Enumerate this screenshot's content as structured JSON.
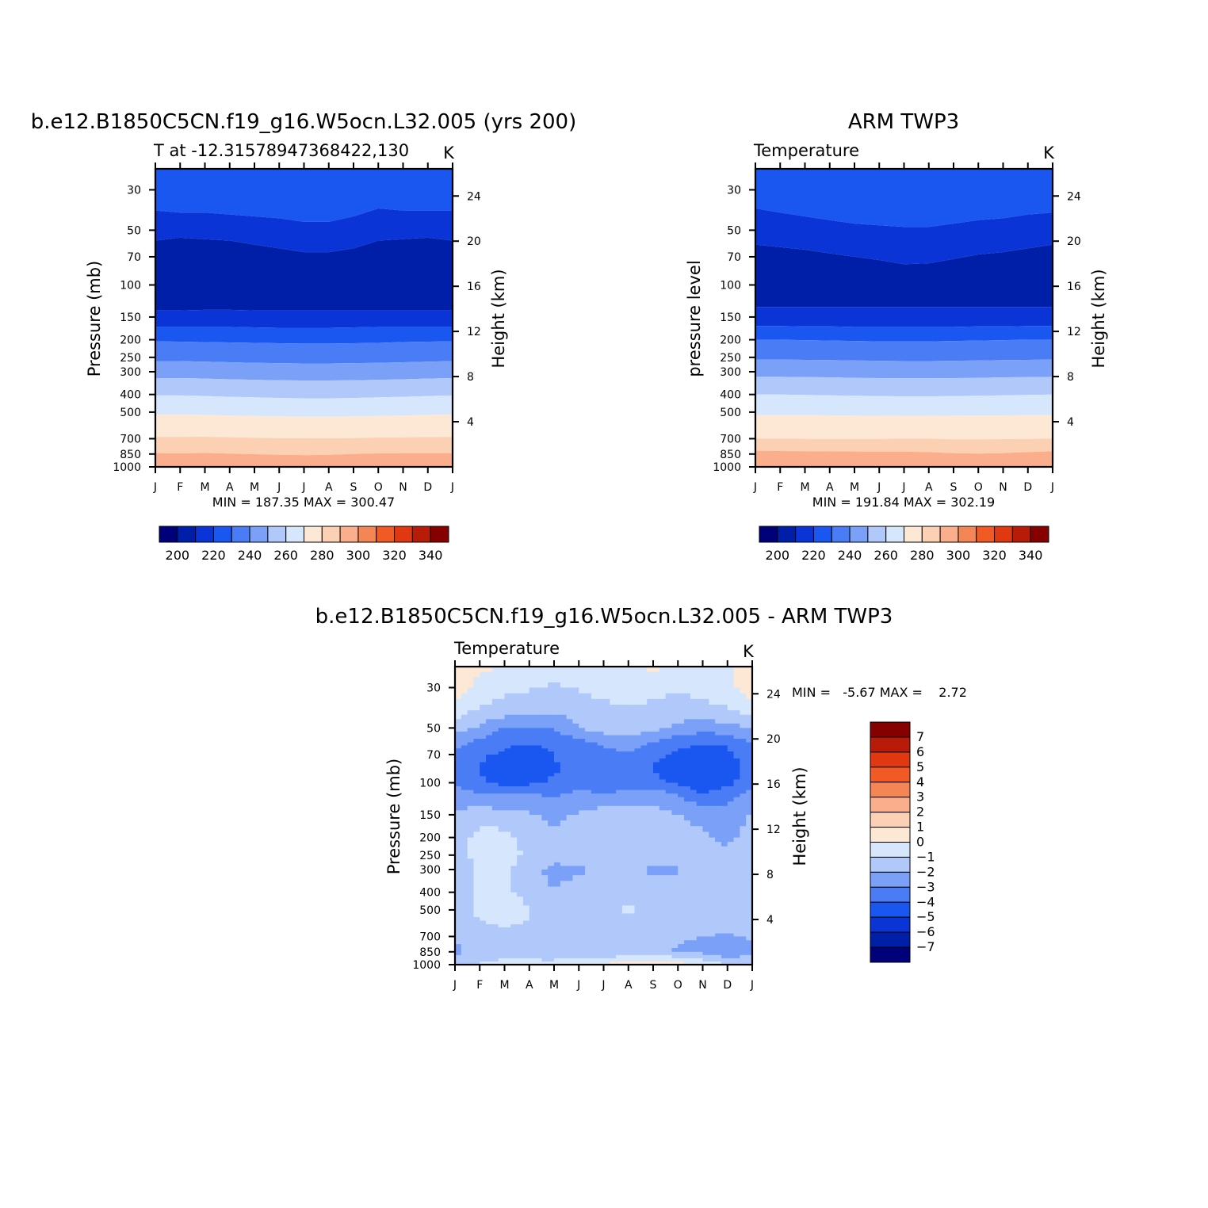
{
  "figure": {
    "panels": [
      {
        "id": "model",
        "title": "b.e12.B1850C5CN.f19_g16.W5ocn.L32.005 (yrs 200)",
        "subtitle_left": "T at -12.31578947368422,130",
        "subtitle_right": "K",
        "ylabel_left": "Pressure (mb)",
        "ylabel_right": "Height (km)",
        "minmax": "MIN = 187.35 MAX = 300.47"
      },
      {
        "id": "obs",
        "title": "ARM TWP3",
        "subtitle_left": "Temperature",
        "subtitle_right": "K",
        "ylabel_left": "pressure level",
        "ylabel_right": "Height (km)",
        "minmax": "MIN = 191.84 MAX = 302.19"
      },
      {
        "id": "diff",
        "title": "b.e12.B1850C5CN.f19_g16.W5ocn.L32.005 - ARM TWP3",
        "subtitle_left": "Temperature",
        "subtitle_right": "K",
        "ylabel_left": "Pressure (mb)",
        "ylabel_right": "Height (km)",
        "minmax": "MIN =   -5.67 MAX =    2.72"
      }
    ]
  },
  "chart_data": [
    {
      "type": "heatmap",
      "title": "b.e12.B1850C5CN.f19_g16.W5ocn.L32.005 (yrs 200)",
      "variable": "T at -12.31578947368422,130",
      "units": "K",
      "x_ticks": [
        "J",
        "F",
        "M",
        "A",
        "M",
        "J",
        "J",
        "A",
        "S",
        "O",
        "N",
        "D",
        "J"
      ],
      "y_ticks_pressure": [
        "30",
        "50",
        "70",
        "100",
        "150",
        "200",
        "250",
        "300",
        "400",
        "500",
        "700",
        "850",
        "1000"
      ],
      "y_ticks_height": [
        "24",
        "20",
        "16",
        "12",
        "8",
        "4"
      ],
      "y_pressure_values": [
        30,
        50,
        70,
        100,
        150,
        200,
        250,
        300,
        400,
        500,
        700,
        850,
        1000
      ],
      "y_height_values": [
        24,
        20,
        16,
        12,
        8,
        4
      ],
      "min": 187.35,
      "max": 300.47,
      "colorbar_labels": [
        "200",
        "220",
        "240",
        "260",
        "280",
        "300",
        "320",
        "340"
      ],
      "levels": [
        190,
        200,
        210,
        220,
        230,
        240,
        250,
        260,
        270,
        280,
        290,
        300,
        310,
        320,
        330,
        340,
        350
      ],
      "boundaries_mb": [
        [
          23,
          23,
          23,
          23,
          23,
          23,
          23,
          23,
          23,
          23,
          23,
          23,
          23
        ],
        [
          39,
          40,
          40,
          41,
          42,
          43,
          45,
          45,
          42,
          38,
          39,
          39,
          39
        ],
        [
          57,
          55,
          56,
          57,
          60,
          63,
          66,
          66,
          63,
          57,
          56,
          55,
          57
        ],
        [
          138,
          138,
          137,
          137,
          138,
          138,
          138,
          138,
          138,
          138,
          138,
          138,
          138
        ],
        [
          170,
          170,
          170,
          170,
          171,
          172,
          172,
          172,
          171,
          170,
          170,
          170,
          170
        ],
        [
          204,
          205,
          206,
          207,
          208,
          209,
          210,
          210,
          209,
          208,
          206,
          205,
          204
        ],
        [
          262,
          262,
          264,
          266,
          268,
          269,
          270,
          270,
          269,
          268,
          266,
          264,
          262
        ],
        [
          325,
          325,
          327,
          330,
          332,
          334,
          335,
          335,
          334,
          332,
          330,
          327,
          325
        ],
        [
          405,
          405,
          408,
          412,
          415,
          418,
          420,
          420,
          418,
          415,
          412,
          408,
          405
        ],
        [
          515,
          515,
          518,
          522,
          525,
          528,
          530,
          530,
          528,
          525,
          522,
          518,
          515
        ],
        [
          685,
          685,
          683,
          687,
          692,
          695,
          695,
          696,
          694,
          690,
          688,
          686,
          685
        ],
        [
          840,
          842,
          838,
          845,
          852,
          858,
          862,
          858,
          850,
          843,
          840,
          840,
          840
        ],
        [
          1000,
          1000,
          1000,
          1000,
          1000,
          1000,
          1000,
          1000,
          1000,
          1000,
          1000,
          1000,
          1000
        ]
      ],
      "band_values": [
        "210",
        "200",
        "190",
        "200",
        "210",
        "220",
        "230",
        "240",
        "250",
        "260",
        "270",
        "280",
        "290"
      ]
    },
    {
      "type": "heatmap",
      "title": "ARM TWP3",
      "variable": "Temperature",
      "units": "K",
      "x_ticks": [
        "J",
        "F",
        "M",
        "A",
        "M",
        "J",
        "J",
        "A",
        "S",
        "O",
        "N",
        "D",
        "J"
      ],
      "y_ticks_pressure": [
        "30",
        "50",
        "70",
        "100",
        "150",
        "200",
        "250",
        "300",
        "400",
        "500",
        "700",
        "850",
        "1000"
      ],
      "y_ticks_height": [
        "24",
        "20",
        "16",
        "12",
        "8",
        "4"
      ],
      "y_pressure_values": [
        30,
        50,
        70,
        100,
        150,
        200,
        250,
        300,
        400,
        500,
        700,
        850,
        1000
      ],
      "y_height_values": [
        24,
        20,
        16,
        12,
        8,
        4
      ],
      "min": 191.84,
      "max": 302.19,
      "colorbar_labels": [
        "200",
        "220",
        "240",
        "260",
        "280",
        "300",
        "320",
        "340"
      ],
      "levels": [
        190,
        200,
        210,
        220,
        230,
        240,
        250,
        260,
        270,
        280,
        290,
        300,
        310,
        320,
        330,
        340,
        350
      ],
      "boundaries_mb": [
        [
          23,
          23,
          23,
          23,
          23,
          23,
          23,
          23,
          23,
          23,
          23,
          23,
          23
        ],
        [
          38,
          40,
          42,
          44,
          46,
          47,
          48,
          48,
          46,
          44,
          43,
          41,
          40
        ],
        [
          60,
          62,
          64,
          67,
          70,
          73,
          77,
          76,
          72,
          68,
          66,
          63,
          60
        ],
        [
          132,
          132,
          132,
          132,
          132,
          132,
          132,
          132,
          132,
          132,
          132,
          132,
          132
        ],
        [
          168,
          168,
          169,
          169,
          170,
          170,
          170,
          170,
          170,
          169,
          169,
          168,
          168
        ],
        [
          200,
          200,
          201,
          202,
          203,
          204,
          204,
          204,
          203,
          202,
          201,
          200,
          200
        ],
        [
          257,
          257,
          258,
          259,
          260,
          261,
          262,
          262,
          261,
          260,
          259,
          258,
          257
        ],
        [
          320,
          320,
          321,
          322,
          324,
          325,
          326,
          326,
          325,
          324,
          322,
          321,
          320
        ],
        [
          400,
          400,
          402,
          404,
          406,
          408,
          410,
          410,
          408,
          406,
          404,
          402,
          400
        ],
        [
          520,
          520,
          519,
          521,
          523,
          524,
          525,
          525,
          523,
          522,
          521,
          520,
          520
        ],
        [
          700,
          700,
          701,
          703,
          703,
          702,
          700,
          700,
          705,
          705,
          704,
          702,
          700
        ],
        [
          815,
          818,
          820,
          822,
          823,
          824,
          825,
          830,
          840,
          845,
          840,
          830,
          820
        ],
        [
          1000,
          1000,
          1000,
          1000,
          1000,
          1000,
          1000,
          1000,
          1000,
          1000,
          1000,
          1000,
          1000
        ]
      ],
      "band_values": [
        "210",
        "200",
        "190",
        "200",
        "210",
        "220",
        "230",
        "240",
        "250",
        "260",
        "270",
        "280",
        "290"
      ]
    },
    {
      "type": "heatmap",
      "title": "b.e12.B1850C5CN.f19_g16.W5ocn.L32.005 - ARM TWP3",
      "variable": "Temperature",
      "units": "K",
      "x_ticks": [
        "J",
        "F",
        "M",
        "A",
        "M",
        "J",
        "J",
        "A",
        "S",
        "O",
        "N",
        "D",
        "J"
      ],
      "y_ticks_pressure": [
        "30",
        "50",
        "70",
        "100",
        "150",
        "200",
        "250",
        "300",
        "400",
        "500",
        "700",
        "850",
        "1000"
      ],
      "y_ticks_height": [
        "24",
        "20",
        "16",
        "12",
        "8",
        "4"
      ],
      "y_pressure_values": [
        30,
        50,
        70,
        100,
        150,
        200,
        250,
        300,
        400,
        500,
        700,
        850,
        1000
      ],
      "y_height_values": [
        24,
        20,
        16,
        12,
        8,
        4
      ],
      "min": -5.67,
      "max": 2.72,
      "colorbar_labels": [
        "7",
        "6",
        "5",
        "4",
        "3",
        "2",
        "1",
        "0",
        "-1",
        "-2",
        "-3",
        "-4",
        "-5",
        "-6",
        "-7"
      ],
      "levels": [
        -7,
        -6,
        -5,
        -4,
        -3,
        -2,
        -1,
        0,
        1,
        2,
        3,
        4,
        5,
        6,
        7
      ],
      "grid_pressure": [
        23,
        30,
        40,
        50,
        60,
        70,
        85,
        100,
        120,
        150,
        200,
        250,
        300,
        400,
        500,
        600,
        700,
        850,
        1000
      ],
      "grid_values": [
        [
          0.5,
          0.3,
          -0.3,
          -0.5,
          -0.6,
          -0.6,
          -0.5,
          -0.3,
          0.2,
          -0.3,
          -0.5,
          -0.2,
          0.5
        ],
        [
          0.6,
          -0.4,
          -0.7,
          -0.9,
          -1.1,
          -0.9,
          -0.6,
          -0.3,
          -0.6,
          -0.9,
          -0.6,
          -0.3,
          0.6
        ],
        [
          -0.5,
          -1.1,
          -1.5,
          -1.6,
          -1.7,
          -1.6,
          -1.3,
          -1.1,
          -1.4,
          -1.6,
          -1.3,
          -1.1,
          -0.5
        ],
        [
          -1.5,
          -2.2,
          -3.0,
          -3.2,
          -3.0,
          -2.0,
          -1.5,
          -1.4,
          -1.7,
          -2.2,
          -2.6,
          -2.4,
          -1.8
        ],
        [
          -2.7,
          -3.3,
          -3.8,
          -3.9,
          -3.8,
          -3.3,
          -2.8,
          -2.6,
          -3.0,
          -3.6,
          -3.9,
          -3.8,
          -2.9
        ],
        [
          -3.1,
          -3.8,
          -4.2,
          -4.5,
          -4.0,
          -3.6,
          -3.3,
          -3.1,
          -3.7,
          -4.3,
          -4.6,
          -4.3,
          -3.2
        ],
        [
          -3.4,
          -4.1,
          -4.8,
          -4.8,
          -4.1,
          -3.6,
          -3.4,
          -3.5,
          -4.1,
          -4.8,
          -5.0,
          -4.6,
          -3.6
        ],
        [
          -3.0,
          -3.8,
          -4.3,
          -4.2,
          -3.8,
          -3.4,
          -3.9,
          -3.7,
          -3.6,
          -4.2,
          -4.8,
          -4.3,
          -3.2
        ],
        [
          -2.4,
          -2.8,
          -2.8,
          -2.7,
          -3.0,
          -2.6,
          -2.6,
          -2.4,
          -2.3,
          -2.8,
          -3.7,
          -3.2,
          -2.4
        ],
        [
          -1.9,
          -1.4,
          -1.6,
          -1.9,
          -2.2,
          -1.9,
          -1.6,
          -1.6,
          -1.6,
          -2.0,
          -2.4,
          -2.9,
          -1.9
        ],
        [
          -1.6,
          -0.6,
          -0.7,
          -1.3,
          -1.9,
          -1.6,
          -1.4,
          -1.3,
          -1.3,
          -1.6,
          -1.8,
          -2.2,
          -1.6
        ],
        [
          -1.6,
          -0.6,
          -0.6,
          -1.2,
          -1.6,
          -1.5,
          -1.4,
          -1.4,
          -1.3,
          -1.6,
          -1.6,
          -1.8,
          -1.6
        ],
        [
          -1.7,
          -0.7,
          -0.8,
          -1.6,
          -2.3,
          -2.2,
          -1.6,
          -1.7,
          -2.2,
          -2.1,
          -1.7,
          -1.8,
          -1.7
        ],
        [
          -1.6,
          -0.8,
          -0.9,
          -1.4,
          -2.0,
          -1.5,
          -1.4,
          -1.3,
          -1.6,
          -1.5,
          -1.4,
          -1.6,
          -1.6
        ],
        [
          -1.5,
          -0.7,
          0.2,
          -1.0,
          -1.2,
          -1.3,
          -1.2,
          -0.9,
          -1.2,
          -1.4,
          -0.9,
          -1.3,
          -1.5
        ],
        [
          -1.4,
          -1.1,
          -0.9,
          -1.1,
          -1.4,
          -1.5,
          -1.4,
          -1.3,
          -1.4,
          -1.3,
          -1.6,
          -1.7,
          -1.4
        ],
        [
          -1.9,
          -1.5,
          -1.5,
          -1.6,
          -1.9,
          -1.8,
          -1.6,
          -1.5,
          -1.7,
          -1.9,
          -2.0,
          -2.1,
          -1.9
        ],
        [
          -2.2,
          -1.7,
          -1.6,
          -1.6,
          -1.9,
          -1.8,
          -1.9,
          -1.6,
          -1.7,
          -2.1,
          -2.2,
          -2.8,
          -2.2
        ],
        [
          -1.4,
          -0.9,
          -0.5,
          -0.6,
          -0.5,
          -0.2,
          0.1,
          0.6,
          0.8,
          0.5,
          -0.3,
          -1.0,
          -1.4
        ]
      ]
    }
  ],
  "colormaps": {
    "absolute": [
      "#00007a",
      "#001fa8",
      "#0a34d6",
      "#1a56f0",
      "#4a7df5",
      "#7aa0f7",
      "#b0c8fa",
      "#d6e6fc",
      "#fde8d6",
      "#fcd0b3",
      "#fbae8c",
      "#f48656",
      "#f15a24",
      "#e03810",
      "#b81b08",
      "#870000"
    ],
    "difference": [
      "#00007a",
      "#001fa8",
      "#0a34d6",
      "#1a56f0",
      "#4a7df5",
      "#7aa0f7",
      "#b0c8fa",
      "#d6e6fc",
      "#fde8d6",
      "#fcd0b3",
      "#fbae8c",
      "#f48656",
      "#f15a24",
      "#e03810",
      "#b81b08",
      "#870000"
    ]
  }
}
